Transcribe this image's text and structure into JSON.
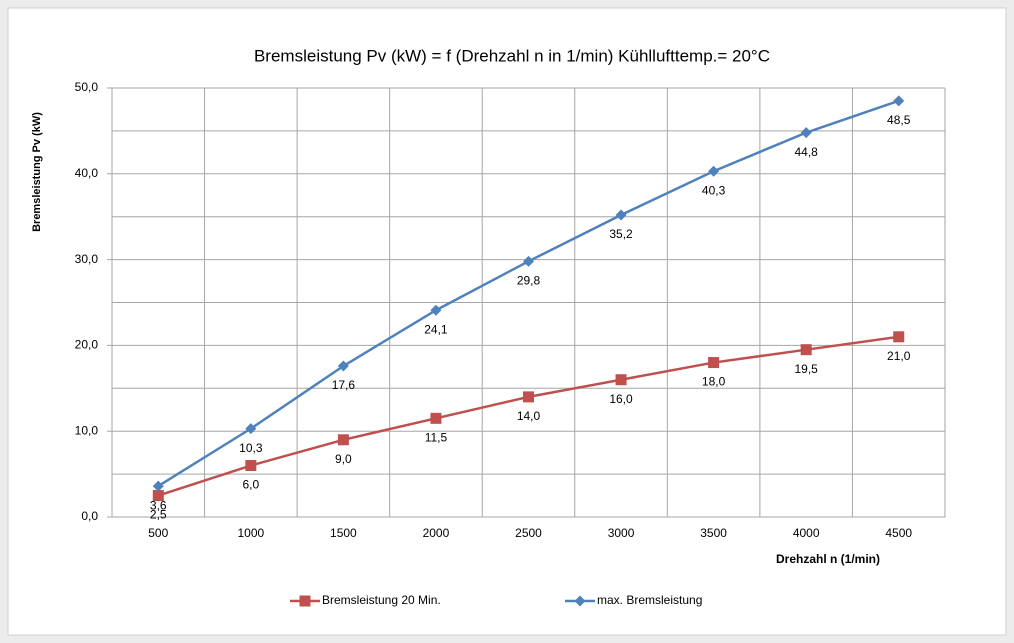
{
  "chart_data": {
    "type": "line",
    "title": "Bremsleistung Pv (kW) = f (Drehzahl n in 1/min)    Kühllufttemp.= 20°C",
    "y_label": "Bremsleistung Pv (kW)",
    "x_label": "Drehzahl n (1/min)",
    "categories": [
      "500",
      "1000",
      "1500",
      "2000",
      "2500",
      "3000",
      "3500",
      "4000",
      "4500"
    ],
    "series": [
      {
        "name": "Bremsleistung 20 Min.",
        "color": "#c0504d",
        "marker": "square",
        "values": [
          2.5,
          6.0,
          9.0,
          11.5,
          14.0,
          16.0,
          18.0,
          19.5,
          21.0
        ],
        "value_labels": [
          "2,5",
          "6,0",
          "9,0",
          "11,5",
          "14,0",
          "16,0",
          "18,0",
          "19,5",
          "21,0"
        ]
      },
      {
        "name": "max. Bremsleistung",
        "color": "#4f81bd",
        "marker": "diamond",
        "values": [
          3.6,
          10.3,
          17.6,
          24.1,
          29.8,
          35.2,
          40.3,
          44.8,
          48.5
        ],
        "value_labels": [
          "3,6",
          "10,3",
          "17,6",
          "24,1",
          "29,8",
          "35,2",
          "40,3",
          "44,8",
          "48,5"
        ]
      }
    ],
    "ylim": [
      0,
      50
    ],
    "yticks": [
      {
        "value": 0,
        "label": "0,0"
      },
      {
        "value": 10,
        "label": "10,0"
      },
      {
        "value": 20,
        "label": "20,0"
      },
      {
        "value": 30,
        "label": "30,0"
      },
      {
        "value": 40,
        "label": "40,0"
      },
      {
        "value": 50,
        "label": "50,0"
      }
    ],
    "yticks_minor": [
      5,
      15,
      25,
      35,
      45
    ],
    "grid": true,
    "legend": "bottom"
  }
}
